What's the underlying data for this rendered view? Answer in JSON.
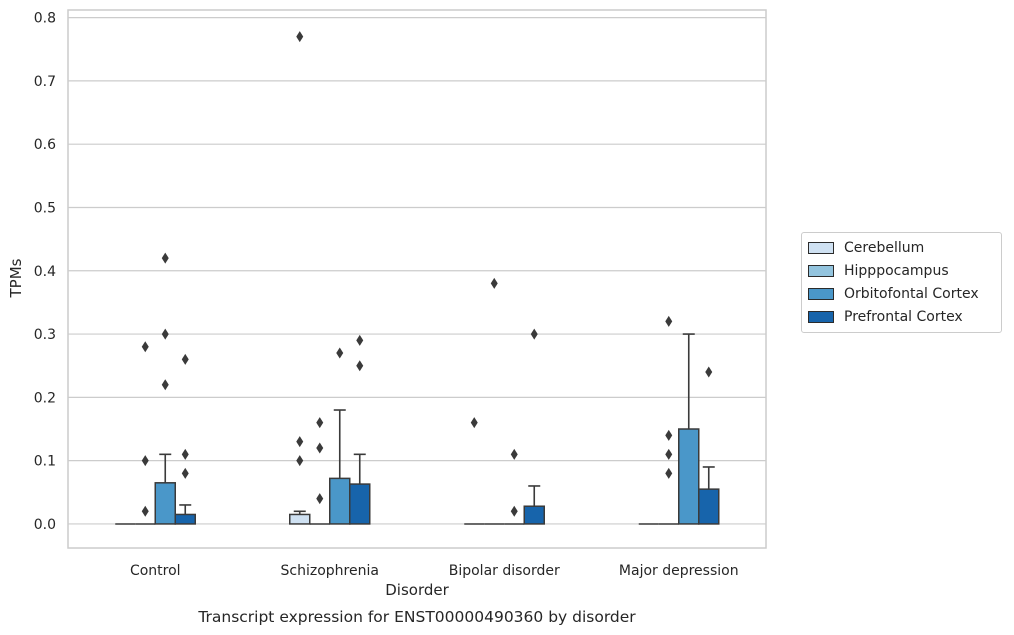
{
  "chart_data": {
    "type": "bar",
    "title": "Transcript expression for ENST00000490360 by disorder",
    "xlabel": "Disorder",
    "ylabel": "TPMs",
    "ylim": [
      -0.038,
      0.812
    ],
    "yticks": [
      "0.0",
      "0.1",
      "0.2",
      "0.3",
      "0.4",
      "0.5",
      "0.6",
      "0.7",
      "0.8"
    ],
    "categories": [
      "Control",
      "Schizophrenia",
      "Bipolar disorder",
      "Major depression"
    ],
    "grid": true,
    "legend_position": "right",
    "series": [
      {
        "name": "Cerebellum",
        "color": "#cfe1f2",
        "values": [
          0.0,
          0.015,
          0.0,
          0.0
        ],
        "error_upper": [
          0.0,
          0.02,
          0.0,
          0.0
        ],
        "outliers": [
          [],
          [
            0.1,
            0.13,
            0.77
          ],
          [
            0.16
          ],
          []
        ]
      },
      {
        "name": "Hipppocampus",
        "color": "#93c4de",
        "values": [
          0.0,
          0.0,
          0.0,
          0.0
        ],
        "error_upper": [
          0.0,
          0.0,
          0.0,
          0.0
        ],
        "outliers": [
          [
            0.02,
            0.1,
            0.28
          ],
          [
            0.04,
            0.12,
            0.16
          ],
          [
            0.38
          ],
          [
            0.08,
            0.11,
            0.14,
            0.32
          ]
        ]
      },
      {
        "name": "Orbitofontal Cortex",
        "color": "#4a97c9",
        "values": [
          0.065,
          0.072,
          0.0,
          0.15
        ],
        "error_upper": [
          0.11,
          0.18,
          0.0,
          0.3
        ],
        "outliers": [
          [
            0.22,
            0.3,
            0.42
          ],
          [
            0.27
          ],
          [
            0.02,
            0.11
          ],
          []
        ]
      },
      {
        "name": "Prefrontal Cortex",
        "color": "#1764ab",
        "values": [
          0.015,
          0.063,
          0.028,
          0.055
        ],
        "error_upper": [
          0.03,
          0.11,
          0.06,
          0.09
        ],
        "outliers": [
          [
            0.08,
            0.11,
            0.26
          ],
          [
            0.25,
            0.29
          ],
          [
            0.3
          ],
          [
            0.24
          ]
        ]
      }
    ]
  }
}
